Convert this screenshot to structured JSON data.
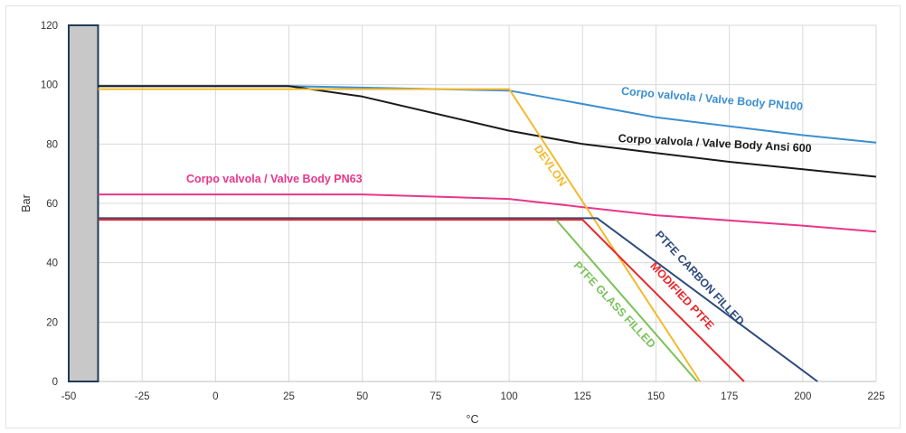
{
  "chart_data": {
    "type": "line",
    "title": "",
    "xlabel": "°C",
    "ylabel": "Bar",
    "xlim": [
      -50,
      225
    ],
    "ylim": [
      0,
      120
    ],
    "xticks": [
      -50,
      -25,
      0,
      25,
      50,
      75,
      100,
      125,
      150,
      175,
      200,
      225
    ],
    "yticks": [
      0,
      20,
      40,
      60,
      80,
      100,
      120
    ],
    "grid": true,
    "shaded_region": {
      "x": [
        -50,
        -40
      ],
      "color": "#c8c8c8"
    },
    "series": [
      {
        "name": "Corpo valvola / Valve Body PN100",
        "color": "#3b8fd0",
        "x": [
          -40,
          25,
          100,
          150,
          200,
          225
        ],
        "y": [
          99.5,
          99.5,
          98,
          89,
          83,
          80.5
        ]
      },
      {
        "name": "Corpo valvola / Valve Body Ansi 600",
        "color": "#1a1a1a",
        "x": [
          -40,
          25,
          50,
          100,
          125,
          150,
          175,
          200,
          225
        ],
        "y": [
          99.5,
          99.5,
          96,
          84.5,
          80,
          77,
          74,
          71.5,
          69
        ]
      },
      {
        "name": "Corpo valvola / Valve Body PN63",
        "color": "#e8368a",
        "x": [
          -40,
          50,
          100,
          150,
          200,
          225
        ],
        "y": [
          63,
          63,
          61.5,
          56,
          52.5,
          50.5
        ]
      },
      {
        "name": "DEVLON",
        "color": "#f4b92e",
        "x": [
          -40,
          100,
          165
        ],
        "y": [
          98.5,
          98.5,
          0
        ]
      },
      {
        "name": "PTFE CARBON FILLED",
        "color": "#2f4b7c",
        "x": [
          -40,
          130,
          205
        ],
        "y": [
          55,
          55,
          0
        ]
      },
      {
        "name": "MODIFIED PTFE",
        "color": "#e8262a",
        "x": [
          -40,
          125,
          180
        ],
        "y": [
          54.5,
          54.5,
          0
        ]
      },
      {
        "name": "PTFE GLASS FILLED",
        "color": "#7bc25b",
        "x": [
          116,
          164
        ],
        "y": [
          54.5,
          0
        ]
      }
    ],
    "annotations": [
      {
        "text": "Corpo valvola / Valve Body PN100",
        "color": "#3b8fd0",
        "x": 169,
        "y": 94,
        "angle": 5
      },
      {
        "text": "Corpo valvola / Valve Body Ansi 600",
        "color": "#1a1a1a",
        "x": 170,
        "y": 79,
        "angle": 3
      },
      {
        "text": "Corpo valvola / Valve Body PN63",
        "color": "#e8368a",
        "x": 20,
        "y": 67,
        "angle": 0
      },
      {
        "text": "DEVLON",
        "color": "#f4b92e",
        "x": 113,
        "y": 72,
        "angle": 55
      },
      {
        "text": "PTFE CARBON FILLED",
        "color": "#2f4b7c",
        "x": 164,
        "y": 34,
        "angle": 47
      },
      {
        "text": "MODIFIED PTFE",
        "color": "#e8262a",
        "x": 158,
        "y": 28,
        "angle": 47
      },
      {
        "text": "PTFE GLASS FILLED",
        "color": "#7bc25b",
        "x": 135,
        "y": 25,
        "angle": 47
      }
    ]
  }
}
